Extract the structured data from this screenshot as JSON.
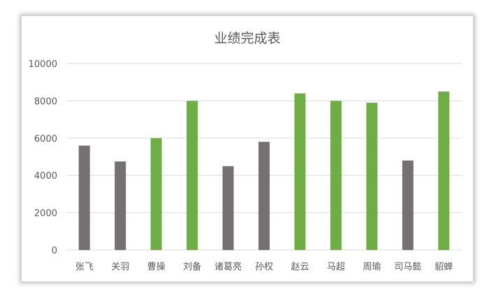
{
  "chart_data": {
    "type": "bar",
    "title": "业绩完成表",
    "categories": [
      "张飞",
      "关羽",
      "曹操",
      "刘备",
      "诸葛亮",
      "孙权",
      "赵云",
      "马超",
      "周瑜",
      "司马懿",
      "貂蝉"
    ],
    "values": [
      5600,
      4750,
      6000,
      8000,
      4500,
      5800,
      8400,
      8000,
      7900,
      4800,
      8500
    ],
    "bar_colors": [
      "#767171",
      "#767171",
      "#70ad47",
      "#70ad47",
      "#767171",
      "#767171",
      "#70ad47",
      "#70ad47",
      "#70ad47",
      "#767171",
      "#70ad47"
    ],
    "yticks": [
      0,
      2000,
      4000,
      6000,
      8000,
      10000
    ],
    "ylim": [
      0,
      10000
    ],
    "grid": true,
    "legend": "none"
  }
}
